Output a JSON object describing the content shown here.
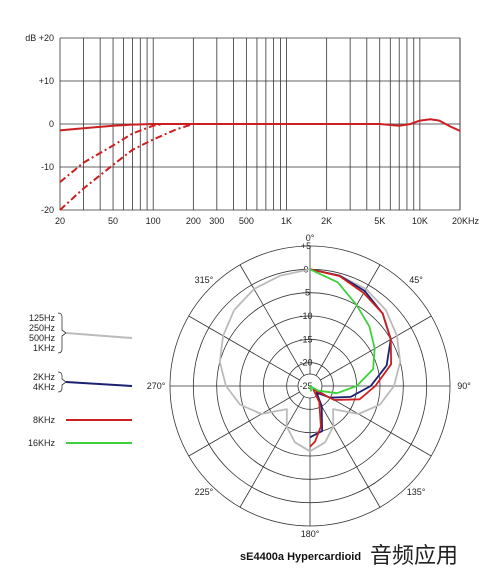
{
  "chart_data": [
    {
      "type": "line",
      "title": "",
      "xlabel": "",
      "ylabel": "",
      "xscale": "log",
      "xlim": [
        20,
        20000
      ],
      "ylim": [
        -20,
        20
      ],
      "y_unit": "dB",
      "x_tick_labels": [
        {
          "value": 20,
          "label": "20"
        },
        {
          "value": 50,
          "label": "50"
        },
        {
          "value": 100,
          "label": "100"
        },
        {
          "value": 200,
          "label": "200"
        },
        {
          "value": 300,
          "label": "300"
        },
        {
          "value": 500,
          "label": "500"
        },
        {
          "value": 1000,
          "label": "1K"
        },
        {
          "value": 2000,
          "label": "2K"
        },
        {
          "value": 5000,
          "label": "5K"
        },
        {
          "value": 10000,
          "label": "10K"
        },
        {
          "value": 20000,
          "label": "20KHz"
        }
      ],
      "y_tick_labels": [
        {
          "value": 20,
          "label": "dB +20"
        },
        {
          "value": 10,
          "label": "+10"
        },
        {
          "value": 0,
          "label": "0"
        },
        {
          "value": -10,
          "label": "-10"
        },
        {
          "value": -20,
          "label": "-20"
        }
      ],
      "grid": true,
      "series": [
        {
          "color": "#cc1f1f",
          "dash": "solid",
          "points": [
            [
              20,
              -1.5
            ],
            [
              30,
              -1.0
            ],
            [
              50,
              -0.4
            ],
            [
              70,
              -0.15
            ],
            [
              100,
              0
            ],
            [
              1000,
              0
            ],
            [
              3000,
              0
            ],
            [
              5000,
              0
            ],
            [
              7000,
              -0.4
            ],
            [
              8500,
              0
            ],
            [
              10000,
              0.8
            ],
            [
              12000,
              1.1
            ],
            [
              14000,
              0.8
            ],
            [
              17000,
              -0.6
            ],
            [
              20000,
              -1.6
            ]
          ]
        },
        {
          "color": "#cc1f1f",
          "dash": "dashed",
          "points": [
            [
              20,
              -13.5
            ],
            [
              30,
              -9
            ],
            [
              50,
              -5
            ],
            [
              70,
              -2.2
            ],
            [
              100,
              -0.4
            ],
            [
              120,
              0
            ],
            [
              1000,
              0
            ]
          ]
        },
        {
          "color": "#cc1f1f",
          "dash": "dashed",
          "points": [
            [
              20,
              -20
            ],
            [
              30,
              -15
            ],
            [
              50,
              -9.5
            ],
            [
              70,
              -6
            ],
            [
              100,
              -3.6
            ],
            [
              150,
              -1.2
            ],
            [
              200,
              0
            ],
            [
              1000,
              0
            ]
          ]
        }
      ]
    },
    {
      "type": "polar",
      "title": "sE4400a  Hypercardioid",
      "r_ticks": [
        "+5",
        "0",
        "-5",
        "-10",
        "-15",
        "-20",
        "-25"
      ],
      "r_range_db": [
        -25,
        5
      ],
      "angle_labels": [
        "0°",
        "45°",
        "90°",
        "135°",
        "180°",
        "225°",
        "270°",
        "315°"
      ],
      "angle_label_degrees": [
        0,
        45,
        90,
        135,
        180,
        225,
        270,
        315
      ],
      "legend_position": "left",
      "series": [
        {
          "name": "125Hz\n250Hz\n500Hz\n1KHz",
          "color": "#bbbbbb",
          "points": [
            [
              0,
              0
            ],
            [
              15,
              -0.5
            ],
            [
              30,
              -1
            ],
            [
              45,
              -2
            ],
            [
              60,
              -3.5
            ],
            [
              75,
              -5
            ],
            [
              90,
              -7
            ],
            [
              105,
              -9.5
            ],
            [
              120,
              -13
            ],
            [
              135,
              -18
            ],
            [
              150,
              -15
            ],
            [
              165,
              -12.5
            ],
            [
              180,
              -11
            ],
            [
              195,
              -12.5
            ],
            [
              210,
              -15
            ],
            [
              225,
              -18
            ],
            [
              240,
              -13
            ],
            [
              255,
              -9.5
            ],
            [
              270,
              -7
            ],
            [
              285,
              -5
            ],
            [
              300,
              -3.5
            ],
            [
              315,
              -2
            ],
            [
              330,
              -1
            ],
            [
              345,
              -0.5
            ],
            [
              360,
              0
            ]
          ]
        },
        {
          "name": "2KHz\n4KHz",
          "color": "#1a2270",
          "points": [
            [
              0,
              0
            ],
            [
              15,
              -0.5
            ],
            [
              30,
              -1.5
            ],
            [
              45,
              -3
            ],
            [
              60,
              -5
            ],
            [
              75,
              -8
            ],
            [
              90,
              -12
            ],
            [
              105,
              -16
            ],
            [
              120,
              -20
            ],
            [
              135,
              -23
            ],
            [
              150,
              -20
            ],
            [
              165,
              -15
            ],
            [
              180,
              -14
            ]
          ]
        },
        {
          "name": "8KHz",
          "color": "#cc1f1f",
          "points": [
            [
              0,
              0
            ],
            [
              15,
              -0.6
            ],
            [
              30,
              -2
            ],
            [
              45,
              -3
            ],
            [
              60,
              -5
            ],
            [
              75,
              -7
            ],
            [
              90,
              -11
            ],
            [
              105,
              -14
            ],
            [
              120,
              -19
            ],
            [
              135,
              -24
            ],
            [
              150,
              -21
            ],
            [
              165,
              -16
            ],
            [
              175,
              -13
            ],
            [
              180,
              -12
            ]
          ]
        },
        {
          "name": "16KHz",
          "color": "#3dd13d",
          "points": [
            [
              0,
              0
            ],
            [
              15,
              -2
            ],
            [
              30,
              -5
            ],
            [
              45,
              -7
            ],
            [
              60,
              -9
            ],
            [
              75,
              -11
            ],
            [
              90,
              -15
            ],
            [
              105,
              -19
            ],
            [
              120,
              -23
            ],
            [
              135,
              -25
            ],
            [
              150,
              -25
            ],
            [
              165,
              -24
            ],
            [
              180,
              -24
            ]
          ]
        }
      ]
    }
  ],
  "footer": {
    "title": "sE4400a  Hypercardioid",
    "watermark": "音频应用"
  },
  "legend_brace": "{"
}
